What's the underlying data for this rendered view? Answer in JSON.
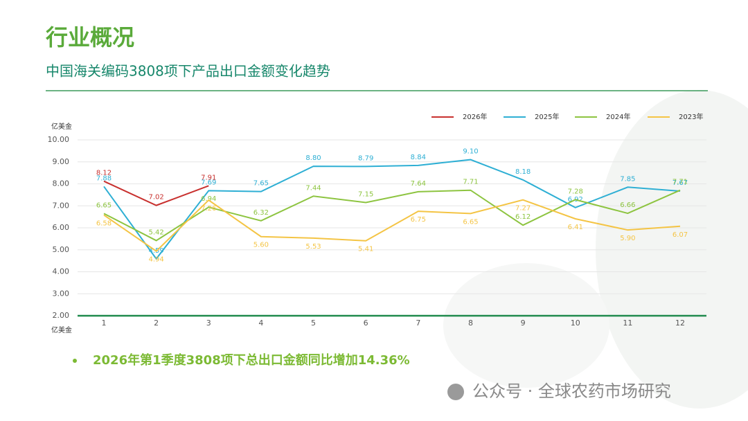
{
  "header": {
    "title": "行业概况",
    "subtitle": "中国海关编码3808项下产品出口金额变化趋势"
  },
  "chart_data": {
    "type": "line",
    "ylabel": "亿美金",
    "xlabel": "亿美金",
    "categories": [
      "1",
      "2",
      "3",
      "4",
      "5",
      "6",
      "7",
      "8",
      "9",
      "10",
      "11",
      "12"
    ],
    "ylim": [
      2,
      10
    ],
    "yticks": [
      {
        "value": 2,
        "label": "2.00"
      },
      {
        "value": 3,
        "label": "3.00"
      },
      {
        "value": 4,
        "label": "4.00"
      },
      {
        "value": 5,
        "label": "5.00"
      },
      {
        "value": 6,
        "label": "6.00"
      },
      {
        "value": 7,
        "label": "7.00"
      },
      {
        "value": 8,
        "label": "8.00"
      },
      {
        "value": 9,
        "label": "9.00"
      },
      {
        "value": 10,
        "label": "10.00"
      }
    ],
    "grid": true,
    "legend": "top-right",
    "series": [
      {
        "name": "2026年",
        "color": "#c8302e",
        "values": [
          8.12,
          7.02,
          7.91,
          null,
          null,
          null,
          null,
          null,
          null,
          null,
          null,
          null
        ],
        "value_labels": [
          "8.12",
          "7.02",
          "7.91",
          null,
          null,
          null,
          null,
          null,
          null,
          null,
          null,
          null
        ]
      },
      {
        "name": "2025年",
        "color": "#2eafd4",
        "values": [
          7.88,
          4.59,
          7.69,
          7.65,
          8.8,
          8.79,
          8.84,
          9.1,
          8.18,
          6.92,
          7.85,
          7.67
        ],
        "value_labels": [
          "7.88",
          "4.59",
          "7.69",
          "7.65",
          "8.80",
          "8.79",
          "8.84",
          "9.10",
          "8.18",
          "6.92",
          "7.85",
          "7.67"
        ]
      },
      {
        "name": "2024年",
        "color": "#8dc440",
        "values": [
          6.65,
          5.42,
          6.94,
          6.32,
          7.44,
          7.15,
          7.64,
          7.71,
          6.12,
          7.28,
          6.66,
          7.71
        ],
        "value_labels": [
          "6.65",
          "5.42",
          "6.94",
          "6.32",
          "7.44",
          "7.15",
          "7.64",
          "7.71",
          "6.12",
          "7.28",
          "6.66",
          "7.71"
        ]
      },
      {
        "name": "2023年",
        "color": "#f4c444",
        "values": [
          6.58,
          4.94,
          7.26,
          5.6,
          5.53,
          5.41,
          6.75,
          6.65,
          7.27,
          6.41,
          5.9,
          6.07
        ],
        "value_labels": [
          "6.58",
          "4.94",
          "7.26",
          "5.60",
          "5.53",
          "5.41",
          "6.75",
          "6.65",
          "7.27",
          "6.41",
          "5.90",
          "6.07"
        ]
      }
    ]
  },
  "bullet": "2026年第1季度3808项下总出口金额同比增加14.36%",
  "watermark": "公众号 · 全球农药市场研究"
}
